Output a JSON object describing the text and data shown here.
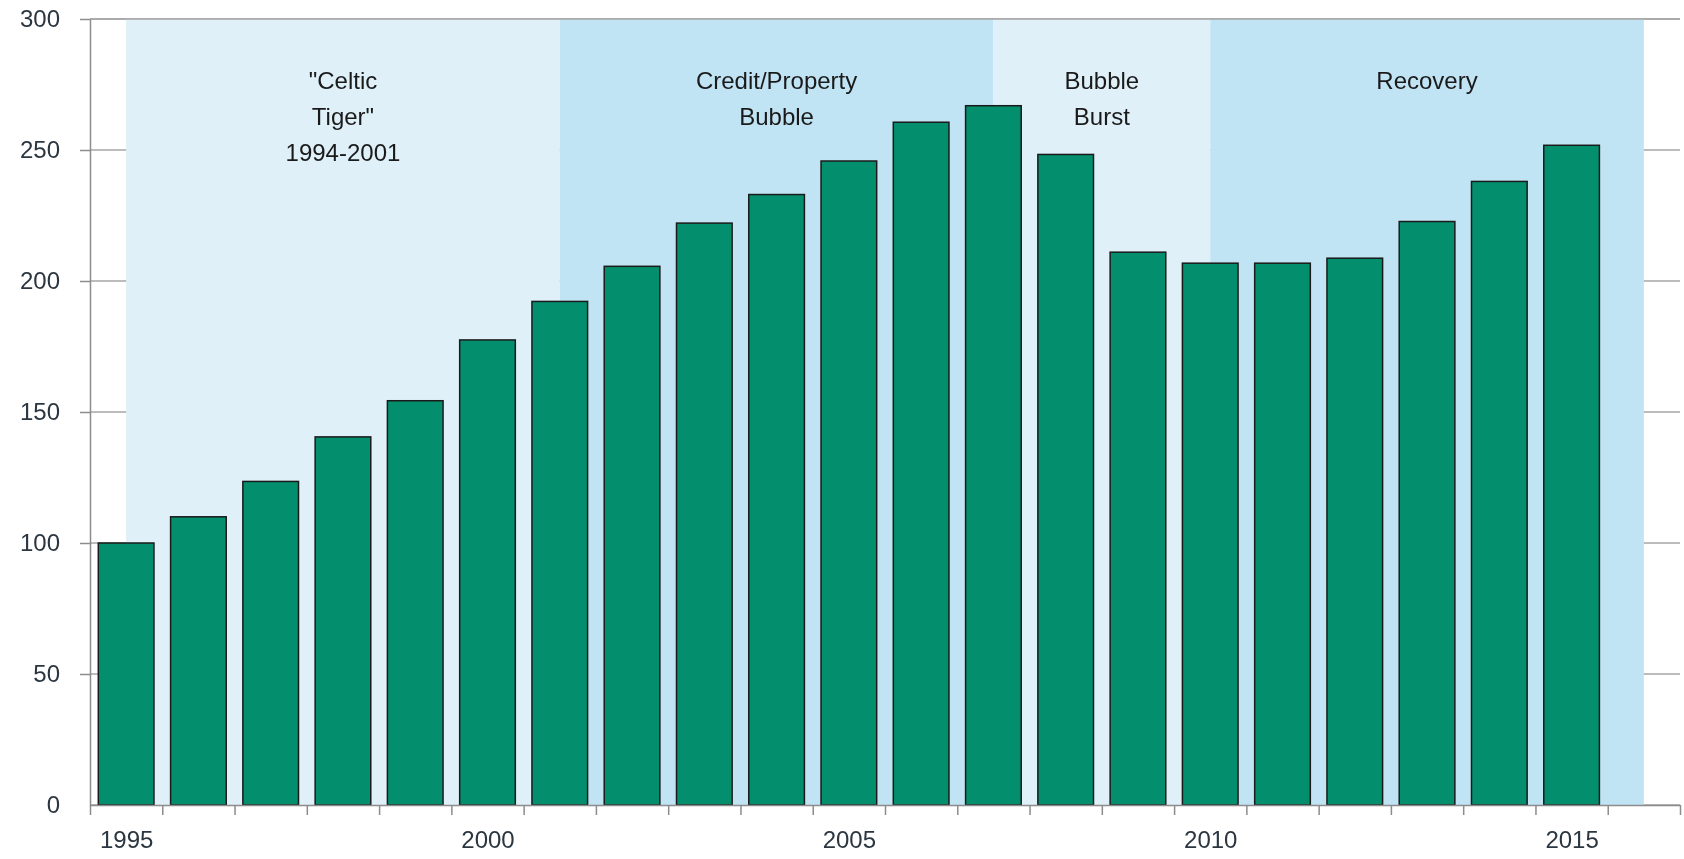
{
  "chart_data": {
    "type": "bar",
    "x": [
      1995,
      1996,
      1997,
      1998,
      1999,
      2000,
      2001,
      2002,
      2003,
      2004,
      2005,
      2006,
      2007,
      2008,
      2009,
      2010,
      2011,
      2012,
      2013,
      2014,
      2015
    ],
    "values": [
      100,
      110,
      123.5,
      140.5,
      154.3,
      177.5,
      192.2,
      205.6,
      222.1,
      233,
      245.8,
      260.6,
      266.9,
      248.3,
      211,
      206.8,
      206.8,
      208.7,
      222.7,
      238,
      251.8
    ],
    "color": "#038f6d",
    "xlim": [
      1994.5,
      2016.5
    ],
    "xticks": [
      {
        "value": 1994.5,
        "label": null
      },
      1995,
      {
        "value": 1995.5,
        "label": null
      },
      {
        "value": 1996.5,
        "label": null
      },
      {
        "value": 1997.5,
        "label": null
      },
      {
        "value": 1998.5,
        "label": null
      },
      {
        "value": 1999.5,
        "label": null
      },
      2000,
      {
        "value": 2000.5,
        "label": null
      },
      {
        "value": 2001.5,
        "label": null
      },
      {
        "value": 2002.5,
        "label": null
      },
      {
        "value": 2003.5,
        "label": null
      },
      {
        "value": 2004.5,
        "label": null
      },
      2005,
      {
        "value": 2005.5,
        "label": null
      },
      {
        "value": 2006.5,
        "label": null
      },
      {
        "value": 2007.5,
        "label": null
      },
      {
        "value": 2008.5,
        "label": null
      },
      {
        "value": 2009.5,
        "label": null
      },
      2010,
      {
        "value": 2010.5,
        "label": null
      },
      {
        "value": 2011.5,
        "label": null
      },
      {
        "value": 2012.5,
        "label": null
      },
      {
        "value": 2013.5,
        "label": null
      },
      {
        "value": 2014.5,
        "label": null
      },
      2015,
      {
        "value": 2015.5,
        "label": null
      },
      {
        "value": 2016.5,
        "label": null
      }
    ],
    "ylim": [
      0,
      300
    ],
    "yticks": [
      0,
      50,
      100,
      150,
      200,
      250,
      300
    ],
    "grid": "y",
    "bands": [
      {
        "axis": "x",
        "from": 1995,
        "to": 2001,
        "label": "\"Celtic\nTiger\"\n1994-2001",
        "color": "#dff0f8"
      },
      {
        "axis": "x",
        "from": 2001,
        "to": 2007,
        "label": "Credit/Property\nBubble",
        "color": "#c1e4f4"
      },
      {
        "axis": "x",
        "from": 2007,
        "to": 2010,
        "label": "Bubble\nBurst",
        "color": "#dff0f8"
      },
      {
        "axis": "x",
        "from": 2010,
        "to": 2016,
        "label": "Recovery",
        "color": "#c1e4f4"
      }
    ]
  }
}
